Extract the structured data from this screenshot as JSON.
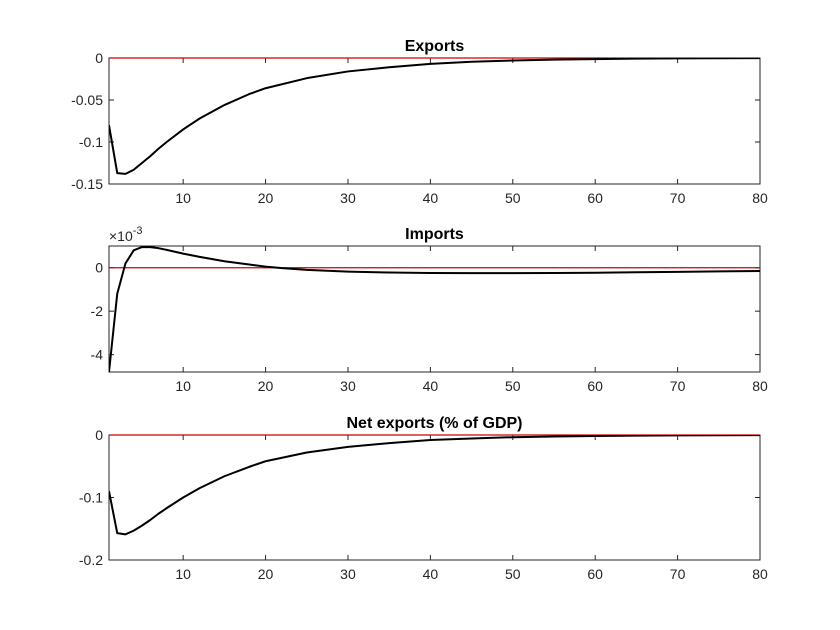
{
  "chart_data": [
    {
      "type": "line",
      "title": "Exports",
      "xlabel": "",
      "ylabel": "",
      "xlim": [
        1,
        80
      ],
      "ylim": [
        -0.15,
        0
      ],
      "xticks": [
        10,
        20,
        30,
        40,
        50,
        60,
        70,
        80
      ],
      "xtick_labels": [
        "10",
        "20",
        "30",
        "40",
        "50",
        "60",
        "70",
        "80"
      ],
      "yticks": [
        0,
        -0.05,
        -0.1,
        -0.15
      ],
      "ytick_labels": [
        "0",
        "-0.05",
        "-0.1",
        "-0.15"
      ],
      "exponent_label": "",
      "reference_line": 0,
      "series": [
        {
          "color": "#000000",
          "x": [
            1,
            2,
            3,
            4,
            5,
            6,
            7,
            8,
            10,
            12,
            15,
            18,
            20,
            25,
            30,
            35,
            40,
            45,
            50,
            55,
            60,
            65,
            70,
            75,
            80
          ],
          "y": [
            -0.08,
            -0.137,
            -0.138,
            -0.133,
            -0.125,
            -0.117,
            -0.108,
            -0.1,
            -0.085,
            -0.072,
            -0.056,
            -0.043,
            -0.036,
            -0.024,
            -0.016,
            -0.011,
            -0.007,
            -0.0045,
            -0.003,
            -0.002,
            -0.0013,
            -0.0008,
            -0.0005,
            -0.0003,
            -0.0002
          ]
        }
      ]
    },
    {
      "type": "line",
      "title": "Imports",
      "xlabel": "",
      "ylabel": "",
      "xlim": [
        1,
        80
      ],
      "ylim": [
        -4.8,
        1
      ],
      "xticks": [
        10,
        20,
        30,
        40,
        50,
        60,
        70,
        80
      ],
      "xtick_labels": [
        "10",
        "20",
        "30",
        "40",
        "50",
        "60",
        "70",
        "80"
      ],
      "yticks": [
        0,
        -2,
        -4
      ],
      "ytick_labels": [
        "0",
        "-2",
        "-4"
      ],
      "exponent_label": "×10",
      "exponent_power": "-3",
      "reference_line": 0,
      "series": [
        {
          "color": "#000000",
          "x": [
            1,
            2,
            3,
            4,
            5,
            6,
            7,
            8,
            10,
            12,
            15,
            18,
            20,
            22,
            25,
            30,
            35,
            40,
            45,
            50,
            55,
            60,
            65,
            70,
            75,
            80
          ],
          "y": [
            -4.8,
            -1.2,
            0.2,
            0.8,
            0.95,
            0.95,
            0.9,
            0.82,
            0.65,
            0.5,
            0.3,
            0.15,
            0.05,
            -0.02,
            -0.1,
            -0.18,
            -0.22,
            -0.24,
            -0.25,
            -0.25,
            -0.24,
            -0.23,
            -0.21,
            -0.19,
            -0.17,
            -0.15
          ]
        }
      ]
    },
    {
      "type": "line",
      "title": "Net exports (% of GDP)",
      "xlabel": "",
      "ylabel": "",
      "xlim": [
        1,
        80
      ],
      "ylim": [
        -0.2,
        0
      ],
      "xticks": [
        10,
        20,
        30,
        40,
        50,
        60,
        70,
        80
      ],
      "xtick_labels": [
        "10",
        "20",
        "30",
        "40",
        "50",
        "60",
        "70",
        "80"
      ],
      "yticks": [
        0,
        -0.1,
        -0.2
      ],
      "ytick_labels": [
        "0",
        "-0.1",
        "-0.2"
      ],
      "exponent_label": "",
      "reference_line": 0,
      "series": [
        {
          "color": "#000000",
          "x": [
            1,
            2,
            3,
            4,
            5,
            6,
            7,
            8,
            10,
            12,
            15,
            18,
            20,
            25,
            30,
            35,
            40,
            45,
            50,
            55,
            60,
            65,
            70,
            75,
            80
          ],
          "y": [
            -0.09,
            -0.157,
            -0.159,
            -0.153,
            -0.145,
            -0.136,
            -0.126,
            -0.117,
            -0.1,
            -0.085,
            -0.066,
            -0.051,
            -0.042,
            -0.028,
            -0.019,
            -0.013,
            -0.008,
            -0.0055,
            -0.0035,
            -0.0023,
            -0.0015,
            -0.001,
            -0.0006,
            -0.0004,
            -0.0002
          ]
        }
      ]
    }
  ],
  "colors": {
    "reference_line": "#cc0000",
    "axes": "#262626",
    "series": "#000000"
  }
}
